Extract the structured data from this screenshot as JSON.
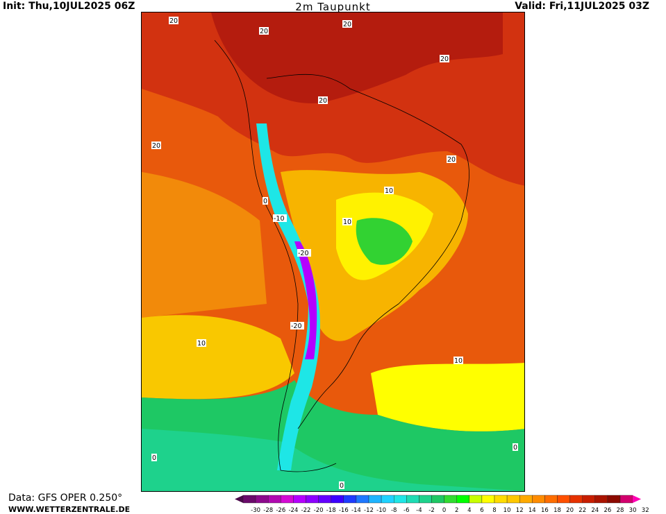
{
  "header": {
    "init": "Init: Thu,10JUL2025 06Z",
    "title": "2m Taupunkt",
    "valid": "Valid: Fri,11JUL2025 03Z"
  },
  "footer": {
    "data_source": "Data: GFS OPER 0.250°",
    "website": "WWW.WETTERZENTRALE.DE"
  },
  "colorbar": {
    "ticks": [
      "-30",
      "-28",
      "-26",
      "-24",
      "-22",
      "-20",
      "-18",
      "-16",
      "-14",
      "-12",
      "-10",
      "-8",
      "-6",
      "-4",
      "-2",
      "0",
      "2",
      "4",
      "6",
      "8",
      "10",
      "12",
      "14",
      "16",
      "18",
      "20",
      "22",
      "24",
      "26",
      "28",
      "30",
      "32"
    ],
    "colors": [
      "#4a0a4a",
      "#6b0a6b",
      "#8c0a8c",
      "#b00ab0",
      "#d40ad4",
      "#b400ff",
      "#8c00ff",
      "#6400ff",
      "#3c00ff",
      "#1e3cff",
      "#1e78ff",
      "#1eb4ff",
      "#1ed2ff",
      "#1ee6e6",
      "#1edcb4",
      "#1ed28c",
      "#1ec864",
      "#32dc32",
      "#00ff00",
      "#c8ff00",
      "#ffff00",
      "#ffdc00",
      "#ffc800",
      "#ffaa00",
      "#ff8c00",
      "#ff6e00",
      "#ff5000",
      "#e63200",
      "#c81e00",
      "#aa1400",
      "#8c0a00",
      "#d2006e",
      "#ff00b4"
    ]
  },
  "contour_labels": [
    "20",
    "10",
    "0",
    "-10",
    "-20",
    "20",
    "10",
    "0"
  ]
}
